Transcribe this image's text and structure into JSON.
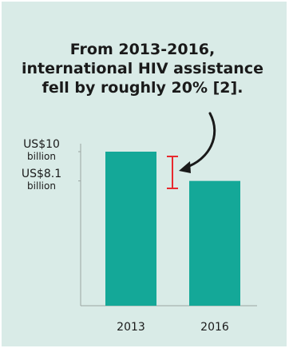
{
  "headline": [
    "From 2013-2016,",
    "international HIV assistance",
    "fell by roughly 20% [2]."
  ],
  "colors": {
    "background": "#d9ebe7",
    "bar": "#14a898",
    "axis": "#9aa5a2",
    "bracket": "#e8292e",
    "arrow": "#1a1a1a"
  },
  "chart_data": {
    "type": "bar",
    "title": "",
    "xlabel": "",
    "ylabel": "",
    "categories": [
      "2013",
      "2016"
    ],
    "values": [
      10,
      8.1
    ],
    "unit": "US$ billion",
    "ylim": [
      0,
      10
    ],
    "grid": false,
    "tick_labels": [
      {
        "value": 10,
        "main": "US$10",
        "unit": "billion"
      },
      {
        "value": 8.1,
        "main": "US$8.1",
        "unit": "billion"
      }
    ],
    "annotation": {
      "type": "range-bracket-with-arrow",
      "from": 10,
      "to": 8.1
    }
  }
}
